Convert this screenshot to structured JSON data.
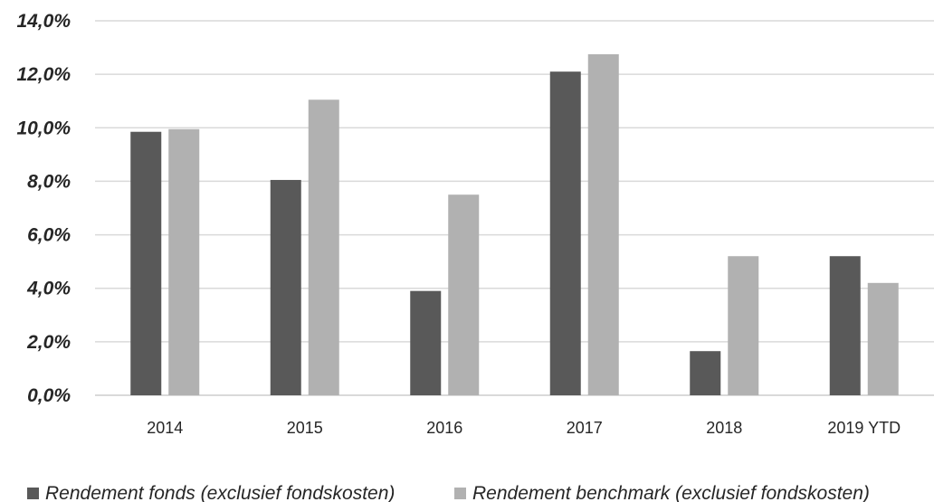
{
  "chart_data": {
    "type": "bar",
    "categories": [
      "2014",
      "2015",
      "2016",
      "2017",
      "2018",
      "2019 YTD"
    ],
    "series": [
      {
        "name": "Rendement fonds (exclusief fondskosten)",
        "color": "#595959",
        "values": [
          9.85,
          8.05,
          3.9,
          12.1,
          1.65,
          5.2
        ]
      },
      {
        "name": "Rendement benchmark (exclusief fondskosten)",
        "color": "#b1b1b1",
        "values": [
          9.95,
          11.05,
          7.5,
          12.75,
          5.2,
          4.2
        ]
      }
    ],
    "ylim": [
      0,
      14
    ],
    "yticks": [
      0,
      2,
      4,
      6,
      8,
      10,
      12,
      14
    ],
    "ytick_labels": [
      "0,0%",
      "2,0%",
      "4,0%",
      "6,0%",
      "8,0%",
      "10,0%",
      "12,0%",
      "14,0%"
    ],
    "grid": true,
    "legend_position": "bottom"
  }
}
